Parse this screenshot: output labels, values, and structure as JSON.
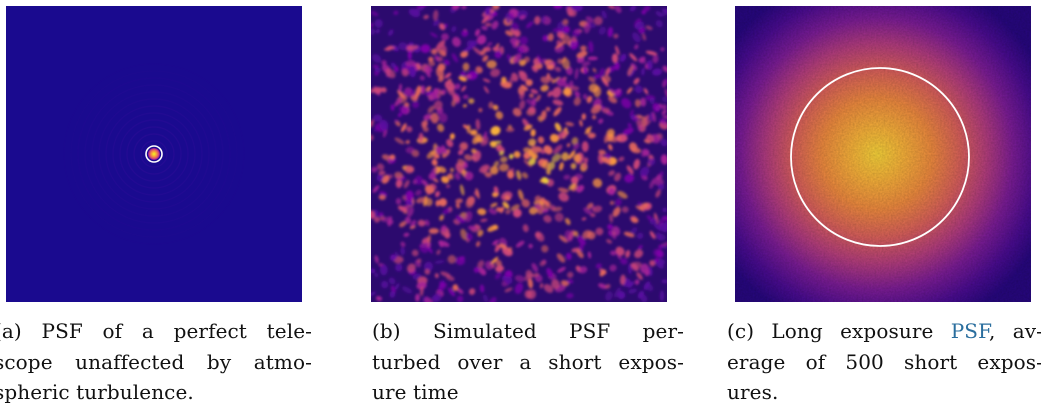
{
  "figure": {
    "panels": [
      {
        "id": "a",
        "caption_lines": [
          "(a) PSF of a perfect tele-",
          "scope unaffected by atmo-",
          "spheric turbulence."
        ],
        "colormap": [
          "#0d0887",
          "#7e03a8",
          "#cc4778",
          "#f89540",
          "#f0f921"
        ]
      },
      {
        "id": "b",
        "caption_lines": [
          "(b) Simulated PSF per-",
          "turbed over a short expos-",
          "ure time"
        ],
        "colormap": [
          "#0d0887",
          "#7e03a8",
          "#cc4778",
          "#f89540",
          "#f0f921"
        ]
      },
      {
        "id": "c",
        "caption_line1_prefix": "(c) Long exposure ",
        "caption_line1_link": "PSF",
        "caption_line1_suffix": ", av-",
        "caption_lines_rest": [
          "erage of 500 short expos-",
          "ures."
        ],
        "link_color": "#2a6e9e",
        "colormap": [
          "#0d0887",
          "#7e03a8",
          "#cc4778",
          "#f89540",
          "#f0f921"
        ]
      }
    ]
  }
}
